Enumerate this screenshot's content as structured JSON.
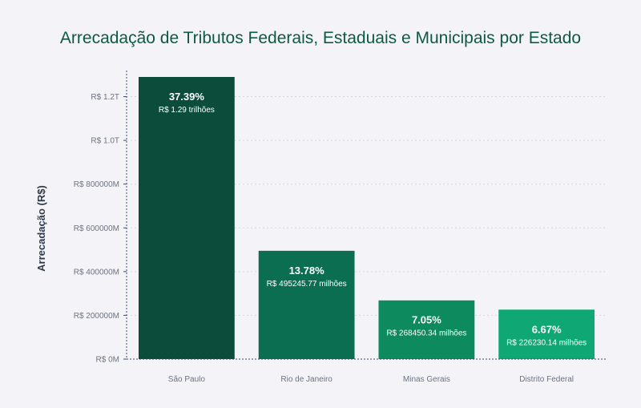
{
  "chart_data": {
    "type": "bar",
    "title": "Arrecadação de Tributos Federais, Estaduais e Municipais por Estado",
    "xlabel": "",
    "ylabel": "Arrecadação (R$)",
    "categories": [
      "São Paulo",
      "Rio de Janeiro",
      "Minas Gerais",
      "Distrito Federal"
    ],
    "values": [
      1290000,
      495245.77,
      268450.34,
      226230.14
    ],
    "value_unit": "milhões de R$",
    "percent_labels": [
      "37.39%",
      "13.78%",
      "7.05%",
      "6.67%"
    ],
    "amount_labels": [
      "R$ 1.29 trilhões",
      "R$ 495245.77 milhões",
      "R$ 268450.34 milhões",
      "R$ 226230.14 milhões"
    ],
    "yticks": [
      0,
      200000,
      400000,
      600000,
      800000,
      1000000,
      1200000
    ],
    "ytick_labels": [
      "R$ 0M",
      "R$ 200000M",
      "R$ 400000M",
      "R$ 600000M",
      "R$ 800000M",
      "R$ 1.0T",
      "R$ 1.2T"
    ],
    "ylim": [
      0,
      1290000
    ],
    "grid": true,
    "legend": "none",
    "colors": [
      "#0b4d3a",
      "#0c6e50",
      "#0d8a5e",
      "#0fa874"
    ]
  }
}
